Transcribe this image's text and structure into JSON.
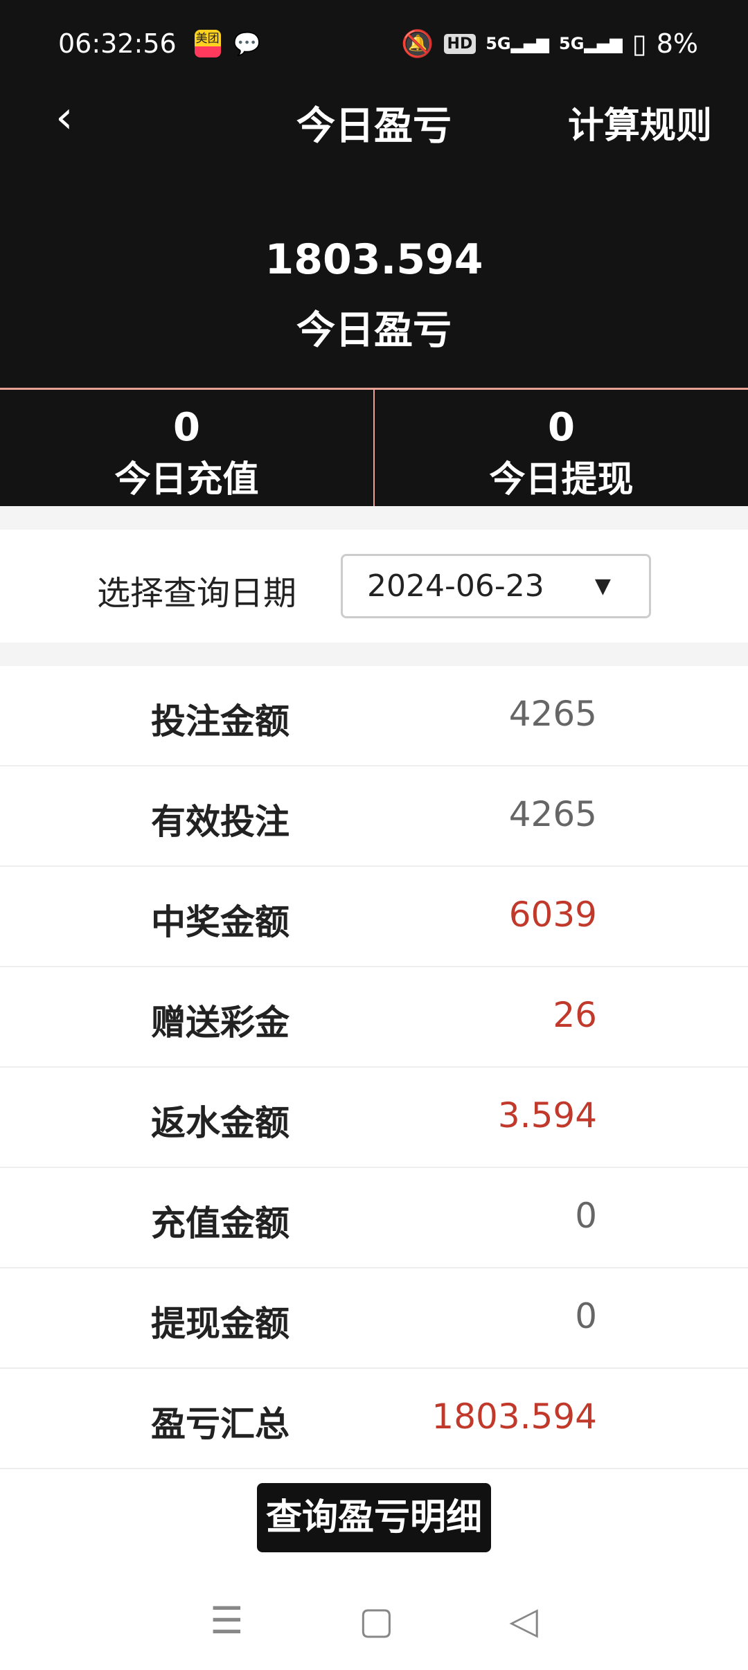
{
  "status": {
    "time": "06:32:56",
    "app_icon_text": "美团",
    "hd": "HD",
    "net1": "5G",
    "net2": "5G",
    "battery": "8%"
  },
  "header": {
    "title": "今日盈亏",
    "rules": "计算规则"
  },
  "summary": {
    "value": "1803.594",
    "label": "今日盈亏"
  },
  "stats": [
    {
      "value": "0",
      "label": "今日充值"
    },
    {
      "value": "0",
      "label": "今日提现"
    }
  ],
  "date": {
    "label": "选择查询日期",
    "value": "2024-06-23"
  },
  "rows": [
    {
      "label": "投注金额",
      "value": "4265",
      "highlight": false
    },
    {
      "label": "有效投注",
      "value": "4265",
      "highlight": false
    },
    {
      "label": "中奖金额",
      "value": "6039",
      "highlight": true
    },
    {
      "label": "赠送彩金",
      "value": "26",
      "highlight": true
    },
    {
      "label": "返水金额",
      "value": "3.594",
      "highlight": true
    },
    {
      "label": "充值金额",
      "value": "0",
      "highlight": false
    },
    {
      "label": "提现金额",
      "value": "0",
      "highlight": false
    },
    {
      "label": "盈亏汇总",
      "value": "1803.594",
      "highlight": true
    }
  ],
  "button": {
    "label": "查询盈亏明细"
  },
  "colors": {
    "header_bg": "#131313",
    "accent_red": "#c0392b",
    "divider": "#e9a396"
  }
}
